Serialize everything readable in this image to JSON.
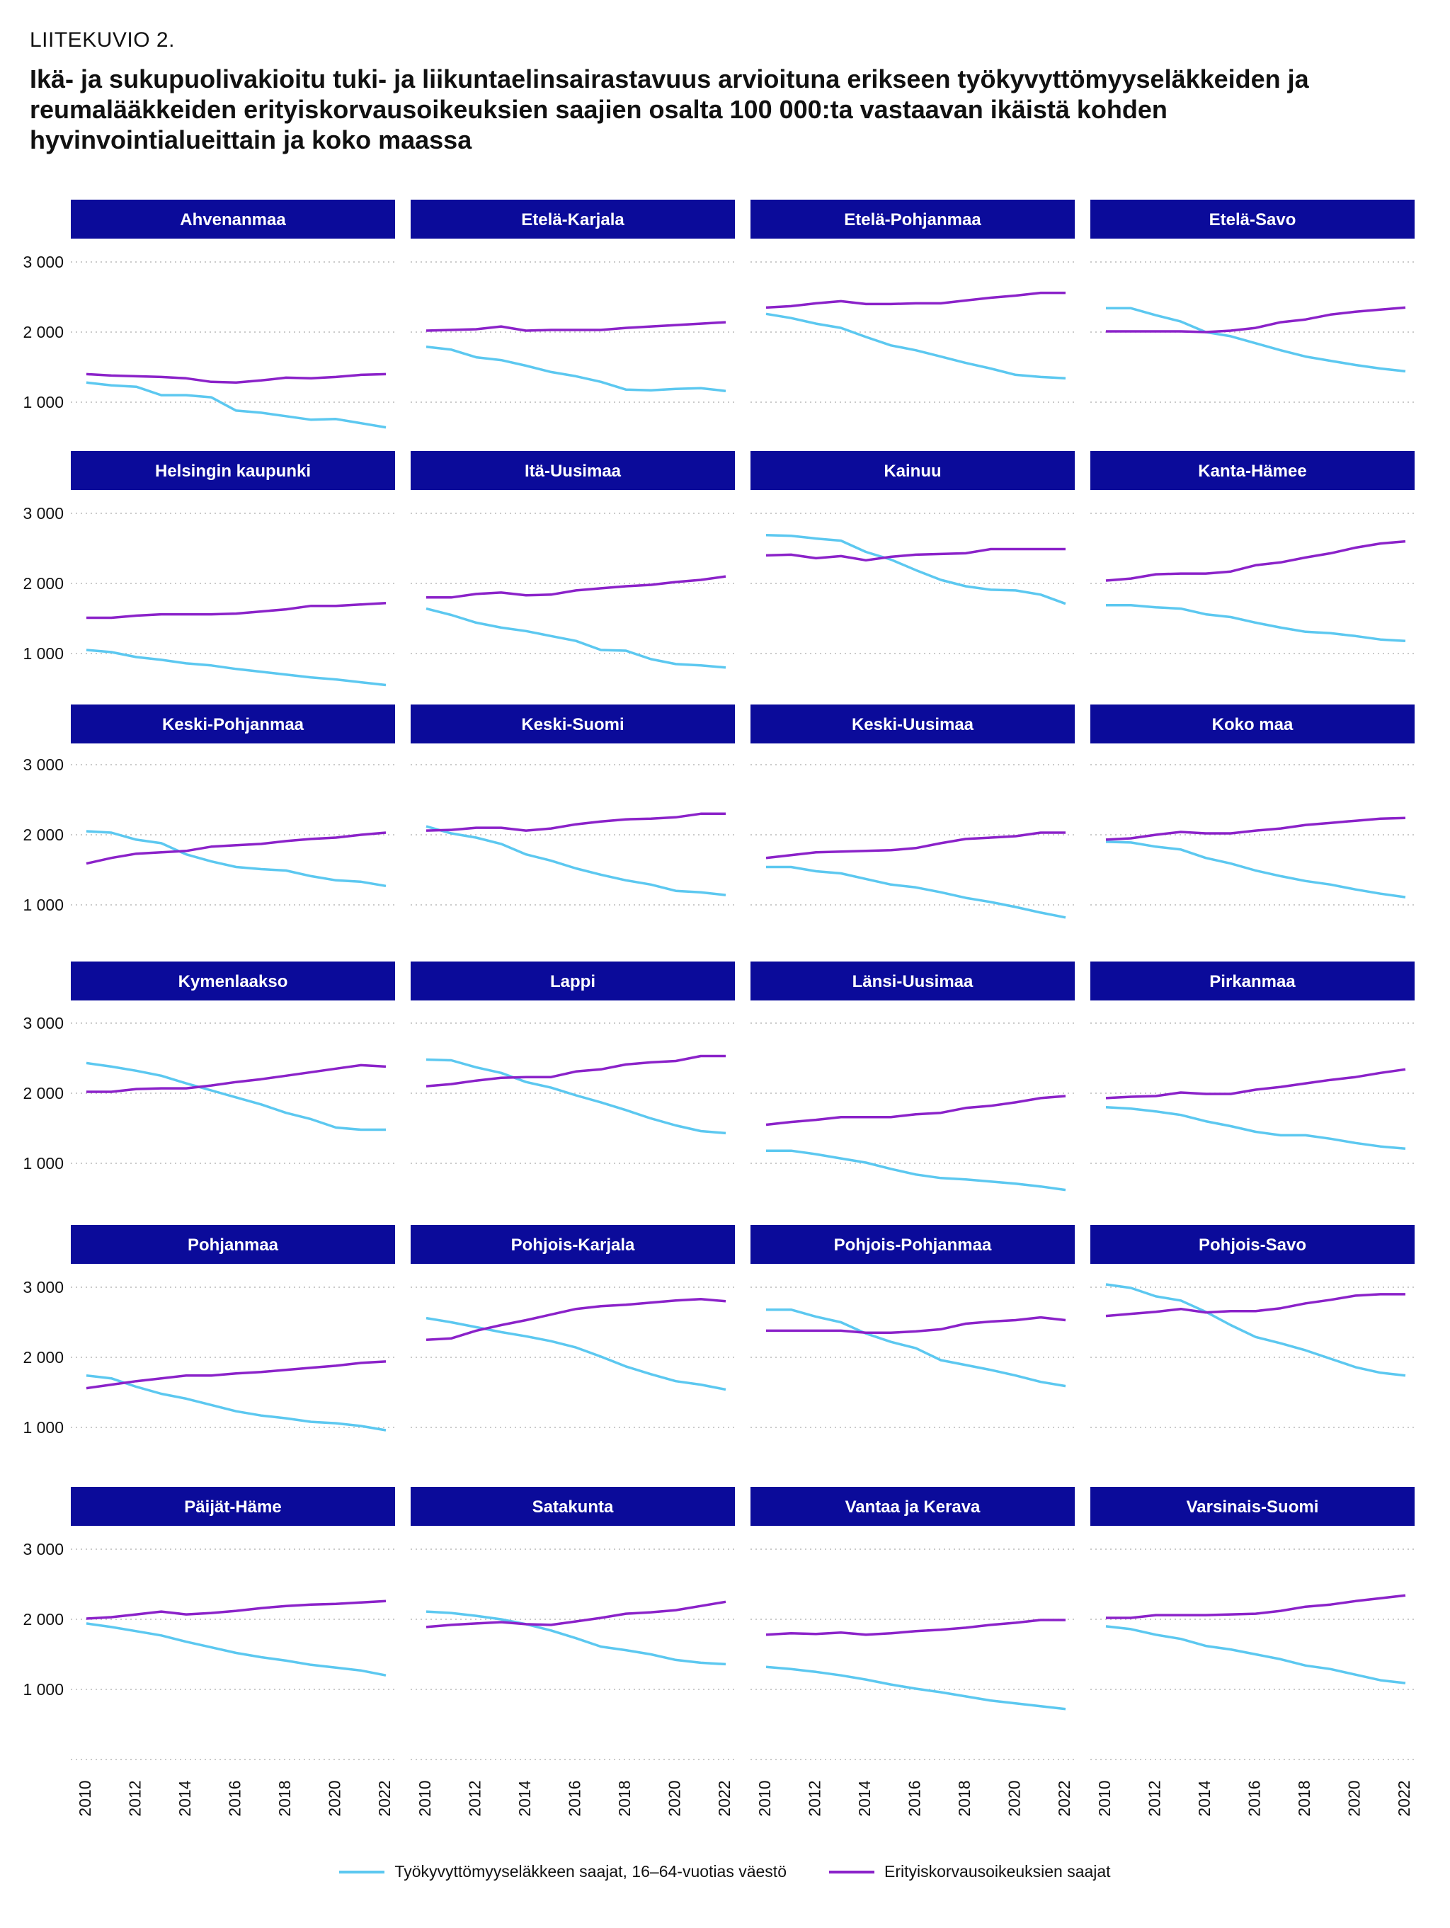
{
  "figure_label": "LIITEKUVIO 2.",
  "title": "Ikä- ja sukupuolivakioitu tuki- ja liikuntaelinsairastavuus arvioituna erikseen työkyvyttömyyseläkkeiden ja reumalääkkeiden erityiskorvausoikeuksien saajien osalta 100 000:ta vastaavan ikäistä kohden hyvinvointialueittain ja koko maassa",
  "colors": {
    "series_1": "#5cc8f0",
    "series_2": "#8b22c9",
    "panel_header": "#0b0b9a"
  },
  "chart_data": {
    "type": "line",
    "x": [
      2010,
      2011,
      2012,
      2013,
      2014,
      2015,
      2016,
      2017,
      2018,
      2019,
      2020,
      2021,
      2022
    ],
    "x_ticks": [
      "2010",
      "2012",
      "2014",
      "2016",
      "2018",
      "2020",
      "2022"
    ],
    "y_ticks": [
      "3 000",
      "2 000",
      "1 000"
    ],
    "ylim": [
      0,
      3300
    ],
    "grid": "horizontal-dotted",
    "legend_position": "bottom",
    "series_names": [
      "Työkyvyttömyyseläkkeen saajat, 16–64-vuotias väestö",
      "Erityiskorvausoikeuksien saajat"
    ],
    "panels": [
      {
        "name": "Ahvenanmaa",
        "s1": [
          1280,
          1240,
          1220,
          1100,
          1100,
          1070,
          880,
          850,
          800,
          750,
          760,
          700,
          640
        ],
        "s2": [
          1400,
          1380,
          1370,
          1360,
          1340,
          1290,
          1280,
          1310,
          1350,
          1340,
          1360,
          1390,
          1400
        ]
      },
      {
        "name": "Etelä-Karjala",
        "s1": [
          1790,
          1750,
          1640,
          1600,
          1520,
          1430,
          1370,
          1290,
          1180,
          1170,
          1190,
          1200,
          1160
        ],
        "s2": [
          2020,
          2030,
          2040,
          2080,
          2020,
          2030,
          2030,
          2030,
          2060,
          2080,
          2100,
          2120,
          2140
        ]
      },
      {
        "name": "Etelä-Pohjanmaa",
        "s1": [
          2260,
          2200,
          2120,
          2060,
          1930,
          1810,
          1740,
          1650,
          1560,
          1480,
          1390,
          1360,
          1340
        ],
        "s2": [
          2350,
          2370,
          2410,
          2440,
          2400,
          2400,
          2410,
          2410,
          2450,
          2490,
          2520,
          2560,
          2560
        ]
      },
      {
        "name": "Etelä-Savo",
        "s1": [
          2340,
          2340,
          2240,
          2150,
          2000,
          1940,
          1840,
          1740,
          1650,
          1590,
          1530,
          1480,
          1440
        ],
        "s2": [
          2010,
          2010,
          2010,
          2010,
          2000,
          2020,
          2060,
          2140,
          2180,
          2250,
          2290,
          2320,
          2350
        ]
      },
      {
        "name": "Helsingin kaupunki",
        "s1": [
          1050,
          1020,
          950,
          910,
          860,
          830,
          780,
          740,
          700,
          660,
          630,
          590,
          550
        ],
        "s2": [
          1510,
          1510,
          1540,
          1560,
          1560,
          1560,
          1570,
          1600,
          1630,
          1680,
          1680,
          1700,
          1720
        ]
      },
      {
        "name": "Itä-Uusimaa",
        "s1": [
          1640,
          1550,
          1440,
          1370,
          1320,
          1250,
          1180,
          1050,
          1040,
          920,
          850,
          830,
          800
        ],
        "s2": [
          1800,
          1800,
          1850,
          1870,
          1830,
          1840,
          1900,
          1930,
          1960,
          1980,
          2020,
          2050,
          2100
        ]
      },
      {
        "name": "Kainuu",
        "s1": [
          2690,
          2680,
          2640,
          2610,
          2450,
          2340,
          2190,
          2050,
          1960,
          1910,
          1900,
          1840,
          1710
        ],
        "s2": [
          2400,
          2410,
          2360,
          2390,
          2330,
          2380,
          2410,
          2420,
          2430,
          2490,
          2490,
          2490,
          2490
        ]
      },
      {
        "name": "Kanta-Hämee",
        "s1": [
          1690,
          1690,
          1660,
          1640,
          1560,
          1520,
          1440,
          1370,
          1310,
          1290,
          1250,
          1200,
          1180
        ],
        "s2": [
          2040,
          2070,
          2130,
          2140,
          2140,
          2170,
          2260,
          2300,
          2370,
          2430,
          2510,
          2570,
          2600
        ]
      },
      {
        "name": "Keski-Pohjanmaa",
        "s1": [
          2050,
          2030,
          1930,
          1880,
          1720,
          1620,
          1540,
          1510,
          1490,
          1410,
          1350,
          1330,
          1270
        ],
        "s2": [
          1590,
          1670,
          1730,
          1750,
          1770,
          1830,
          1850,
          1870,
          1910,
          1940,
          1960,
          2000,
          2030
        ]
      },
      {
        "name": "Keski-Suomi",
        "s1": [
          2120,
          2020,
          1960,
          1870,
          1720,
          1630,
          1520,
          1430,
          1350,
          1290,
          1200,
          1180,
          1140
        ],
        "s2": [
          2060,
          2070,
          2100,
          2100,
          2060,
          2090,
          2150,
          2190,
          2220,
          2230,
          2250,
          2300,
          2300
        ]
      },
      {
        "name": "Keski-Uusimaa",
        "s1": [
          1540,
          1540,
          1480,
          1450,
          1370,
          1290,
          1250,
          1180,
          1100,
          1040,
          970,
          890,
          820
        ],
        "s2": [
          1670,
          1710,
          1750,
          1760,
          1770,
          1780,
          1810,
          1880,
          1940,
          1960,
          1980,
          2030,
          2030
        ]
      },
      {
        "name": "Koko maa",
        "s1": [
          1900,
          1890,
          1830,
          1790,
          1670,
          1590,
          1490,
          1410,
          1340,
          1290,
          1220,
          1160,
          1110
        ],
        "s2": [
          1930,
          1950,
          2000,
          2040,
          2020,
          2020,
          2060,
          2090,
          2140,
          2170,
          2200,
          2230,
          2240
        ]
      },
      {
        "name": "Kymenlaakso",
        "s1": [
          2430,
          2380,
          2320,
          2250,
          2140,
          2040,
          1940,
          1840,
          1720,
          1630,
          1510,
          1480,
          1480
        ],
        "s2": [
          2020,
          2020,
          2060,
          2070,
          2070,
          2110,
          2160,
          2200,
          2250,
          2300,
          2350,
          2400,
          2380
        ]
      },
      {
        "name": "Lappi",
        "s1": [
          2480,
          2470,
          2370,
          2290,
          2160,
          2080,
          1970,
          1870,
          1760,
          1640,
          1540,
          1460,
          1430
        ],
        "s2": [
          2100,
          2130,
          2180,
          2220,
          2230,
          2230,
          2310,
          2340,
          2410,
          2440,
          2460,
          2530,
          2530
        ]
      },
      {
        "name": "Länsi-Uusimaa",
        "s1": [
          1180,
          1180,
          1130,
          1070,
          1010,
          920,
          840,
          790,
          770,
          740,
          710,
          670,
          620
        ],
        "s2": [
          1550,
          1590,
          1620,
          1660,
          1660,
          1660,
          1700,
          1720,
          1790,
          1820,
          1870,
          1930,
          1960
        ]
      },
      {
        "name": "Pirkanmaa",
        "s1": [
          1800,
          1780,
          1740,
          1690,
          1600,
          1530,
          1450,
          1400,
          1400,
          1350,
          1290,
          1240,
          1210
        ],
        "s2": [
          1930,
          1950,
          1960,
          2010,
          1990,
          1990,
          2050,
          2090,
          2140,
          2190,
          2230,
          2290,
          2340
        ]
      },
      {
        "name": "Pohjanmaa",
        "s1": [
          1740,
          1700,
          1580,
          1480,
          1410,
          1320,
          1230,
          1170,
          1130,
          1080,
          1060,
          1020,
          960
        ],
        "s2": [
          1560,
          1610,
          1660,
          1700,
          1740,
          1740,
          1770,
          1790,
          1820,
          1850,
          1880,
          1920,
          1940
        ]
      },
      {
        "name": "Pohjois-Karjala",
        "s1": [
          2560,
          2500,
          2430,
          2360,
          2300,
          2230,
          2140,
          2010,
          1870,
          1760,
          1660,
          1610,
          1540
        ],
        "s2": [
          2250,
          2270,
          2380,
          2460,
          2530,
          2610,
          2690,
          2730,
          2750,
          2780,
          2810,
          2830,
          2800
        ]
      },
      {
        "name": "Pohjois-Pohjanmaa",
        "s1": [
          2680,
          2680,
          2580,
          2500,
          2340,
          2220,
          2130,
          1960,
          1890,
          1820,
          1740,
          1650,
          1590
        ],
        "s2": [
          2380,
          2380,
          2380,
          2380,
          2350,
          2350,
          2370,
          2400,
          2480,
          2510,
          2530,
          2570,
          2530
        ]
      },
      {
        "name": "Pohjois-Savo",
        "s1": [
          3040,
          2990,
          2870,
          2810,
          2650,
          2460,
          2290,
          2200,
          2100,
          1980,
          1860,
          1780,
          1740
        ],
        "s2": [
          2590,
          2620,
          2650,
          2690,
          2640,
          2660,
          2660,
          2700,
          2770,
          2820,
          2880,
          2900,
          2900
        ]
      },
      {
        "name": "Päijät-Häme",
        "s1": [
          1940,
          1890,
          1830,
          1770,
          1680,
          1600,
          1520,
          1460,
          1410,
          1350,
          1310,
          1270,
          1200
        ],
        "s2": [
          2010,
          2030,
          2070,
          2110,
          2070,
          2090,
          2120,
          2160,
          2190,
          2210,
          2220,
          2240,
          2260
        ]
      },
      {
        "name": "Satakunta",
        "s1": [
          2110,
          2090,
          2050,
          2000,
          1930,
          1840,
          1730,
          1610,
          1560,
          1500,
          1420,
          1380,
          1360
        ],
        "s2": [
          1890,
          1920,
          1940,
          1960,
          1930,
          1920,
          1970,
          2020,
          2080,
          2100,
          2130,
          2190,
          2250
        ]
      },
      {
        "name": "Vantaa ja Kerava",
        "s1": [
          1320,
          1290,
          1250,
          1200,
          1140,
          1070,
          1010,
          960,
          900,
          840,
          800,
          760,
          720
        ],
        "s2": [
          1780,
          1800,
          1790,
          1810,
          1780,
          1800,
          1830,
          1850,
          1880,
          1920,
          1950,
          1990,
          1990
        ]
      },
      {
        "name": "Varsinais-Suomi",
        "s1": [
          1900,
          1860,
          1780,
          1720,
          1620,
          1570,
          1500,
          1430,
          1340,
          1290,
          1210,
          1130,
          1090
        ],
        "s2": [
          2020,
          2020,
          2060,
          2060,
          2060,
          2070,
          2080,
          2120,
          2180,
          2210,
          2260,
          2300,
          2340
        ]
      }
    ]
  }
}
